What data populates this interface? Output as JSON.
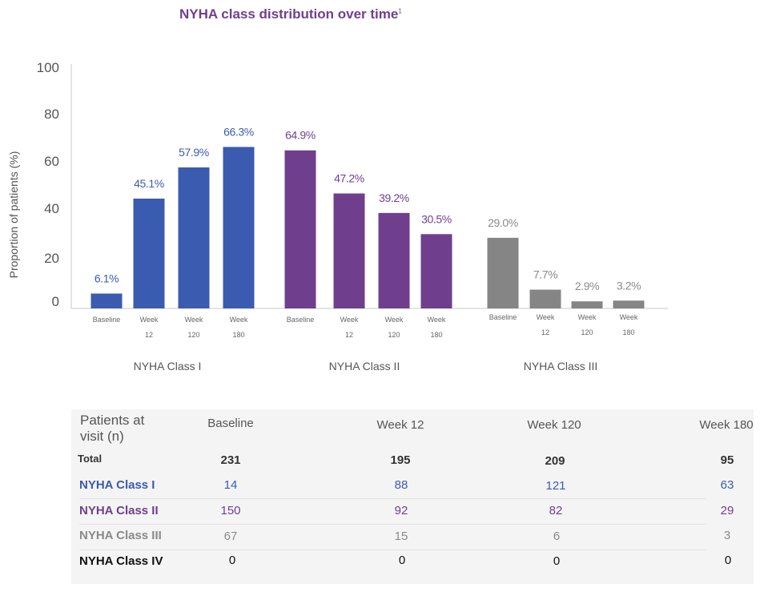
{
  "chart_data": {
    "type": "bar",
    "title": "NYHA class distribution over time",
    "title_superscript": "1",
    "ylabel": "Proportion of patients (%)",
    "ylim": [
      0,
      100
    ],
    "yticks": [
      0,
      20,
      40,
      60,
      80,
      100
    ],
    "grid": false,
    "groups": [
      {
        "name": "NYHA Class I",
        "color": "#3a5bb0",
        "label_color": "#3a5bb0",
        "bars": [
          {
            "line1": "Baseline",
            "line2": "",
            "value": 6.1,
            "label": "6.1%"
          },
          {
            "line1": "Week",
            "line2": "12",
            "value": 45.1,
            "label": "45.1%"
          },
          {
            "line1": "Week",
            "line2": "120",
            "value": 57.9,
            "label": "57.9%"
          },
          {
            "line1": "Week",
            "line2": "180",
            "value": 66.3,
            "label": "66.3%"
          }
        ]
      },
      {
        "name": "NYHA Class II",
        "color": "#6f3f8e",
        "label_color": "#6f3f8e",
        "bars": [
          {
            "line1": "Baseline",
            "line2": "",
            "value": 64.9,
            "label": "64.9%"
          },
          {
            "line1": "Week",
            "line2": "12",
            "value": 47.2,
            "label": "47.2%"
          },
          {
            "line1": "Week",
            "line2": "120",
            "value": 39.2,
            "label": "39.2%"
          },
          {
            "line1": "Week",
            "line2": "180",
            "value": 30.5,
            "label": "30.5%"
          }
        ]
      },
      {
        "name": "NYHA Class III",
        "color": "#858585",
        "label_color": "#8a8a8a",
        "bars": [
          {
            "line1": "Baseline",
            "line2": "",
            "value": 29.0,
            "label": "29.0%"
          },
          {
            "line1": "Week",
            "line2": "12",
            "value": 7.7,
            "label": "7.7%"
          },
          {
            "line1": "Week",
            "line2": "120",
            "value": 2.9,
            "label": "2.9%"
          },
          {
            "line1": "Week",
            "line2": "180",
            "value": 3.2,
            "label": "3.2%"
          }
        ]
      }
    ]
  },
  "table": {
    "header_label": "Patients at visit (n)",
    "columns": [
      "Baseline",
      "Week 12",
      "Week 120",
      "Week 180"
    ],
    "rows": [
      {
        "label": "Total",
        "values": [
          "231",
          "195",
          "209",
          "95"
        ]
      },
      {
        "label": "NYHA Class I",
        "values": [
          "14",
          "88",
          "121",
          "63"
        ]
      },
      {
        "label": "NYHA Class II",
        "values": [
          "150",
          "92",
          "82",
          "29"
        ]
      },
      {
        "label": "NYHA Class III",
        "values": [
          "67",
          "15",
          "6",
          "3"
        ]
      },
      {
        "label": "NYHA Class IV",
        "values": [
          "0",
          "0",
          "0",
          "0"
        ]
      }
    ]
  }
}
